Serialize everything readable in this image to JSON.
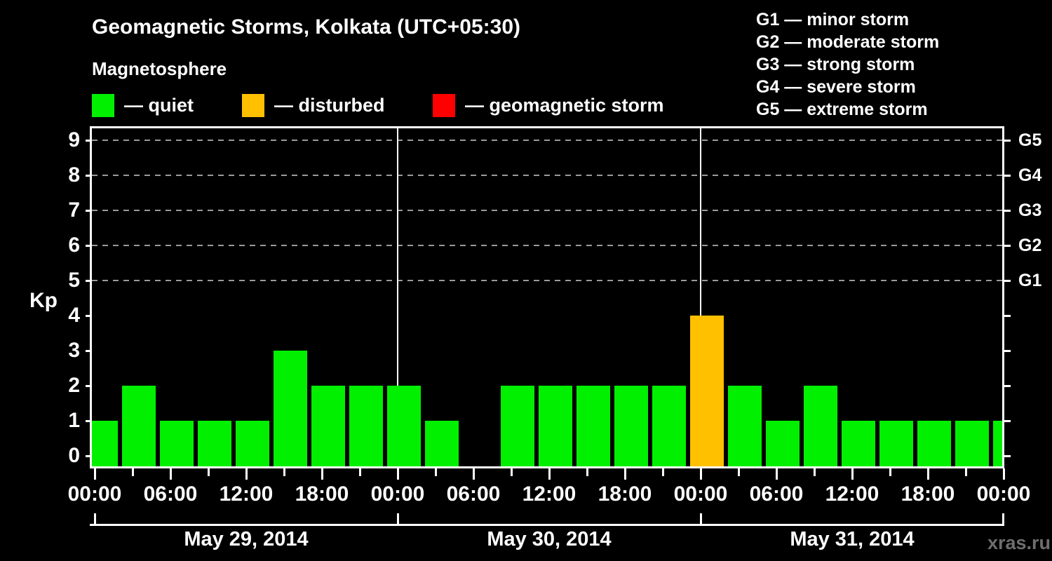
{
  "title": "Geomagnetic Storms, Kolkata (UTC+05:30)",
  "subtitle": "Magnetosphere",
  "legend": {
    "items": [
      {
        "label": "— quiet",
        "color": "#00f000",
        "status": "quiet"
      },
      {
        "label": "— disturbed",
        "color": "#ffc000",
        "status": "disturbed"
      },
      {
        "label": "— geomagnetic storm",
        "color": "#ff0000",
        "status": "storm"
      }
    ]
  },
  "g_scale": {
    "items": [
      "G1 — minor storm",
      "G2 — moderate storm",
      "G3 — strong storm",
      "G4 — severe storm",
      "G5 — extreme storm"
    ]
  },
  "watermark": "xras.ru",
  "chart_data": {
    "type": "bar",
    "title": "Geomagnetic Storms, Kolkata (UTC+05:30)",
    "ylabel": "Kp",
    "ylim": [
      0,
      9
    ],
    "y_ticks": [
      0,
      1,
      2,
      3,
      4,
      5,
      6,
      7,
      8,
      9
    ],
    "gridlines_at": [
      5,
      6,
      7,
      8,
      9
    ],
    "grid": "dashed horizontal lines at storm levels only",
    "right_axis_labels": [
      {
        "kp": 5,
        "label": "G1"
      },
      {
        "kp": 6,
        "label": "G2"
      },
      {
        "kp": 7,
        "label": "G3"
      },
      {
        "kp": 8,
        "label": "G4"
      },
      {
        "kp": 9,
        "label": "G5"
      }
    ],
    "x_tick_labels": [
      "00:00",
      "06:00",
      "12:00",
      "18:00",
      "00:00",
      "06:00",
      "12:00",
      "18:00",
      "00:00",
      "06:00",
      "12:00",
      "18:00",
      "00:00"
    ],
    "x_minor_tick_hours": 3,
    "x_major_tick_hours": 6,
    "days": [
      {
        "label": "May 29, 2014"
      },
      {
        "label": "May 30, 2014"
      },
      {
        "label": "May 31, 2014"
      }
    ],
    "day_boundaries_hours": [
      24,
      48
    ],
    "interval_hours": 3,
    "colors": {
      "quiet": "#00f000",
      "disturbed": "#ffc000",
      "storm": "#ff0000"
    },
    "bars": [
      {
        "kp": 1,
        "status": "quiet"
      },
      {
        "kp": 2,
        "status": "quiet"
      },
      {
        "kp": 1,
        "status": "quiet"
      },
      {
        "kp": 1,
        "status": "quiet"
      },
      {
        "kp": 1,
        "status": "quiet"
      },
      {
        "kp": 3,
        "status": "quiet"
      },
      {
        "kp": 2,
        "status": "quiet"
      },
      {
        "kp": 2,
        "status": "quiet"
      },
      {
        "kp": 2,
        "status": "quiet"
      },
      {
        "kp": 1,
        "status": "quiet"
      },
      {
        "kp": 0,
        "status": "quiet"
      },
      {
        "kp": 2,
        "status": "quiet"
      },
      {
        "kp": 2,
        "status": "quiet"
      },
      {
        "kp": 2,
        "status": "quiet"
      },
      {
        "kp": 2,
        "status": "quiet"
      },
      {
        "kp": 2,
        "status": "quiet"
      },
      {
        "kp": 4,
        "status": "disturbed"
      },
      {
        "kp": 2,
        "status": "quiet"
      },
      {
        "kp": 1,
        "status": "quiet"
      },
      {
        "kp": 2,
        "status": "quiet"
      },
      {
        "kp": 1,
        "status": "quiet"
      },
      {
        "kp": 1,
        "status": "quiet"
      },
      {
        "kp": 1,
        "status": "quiet"
      },
      {
        "kp": 1,
        "status": "quiet"
      },
      {
        "kp": 1,
        "status": "quiet"
      }
    ]
  }
}
